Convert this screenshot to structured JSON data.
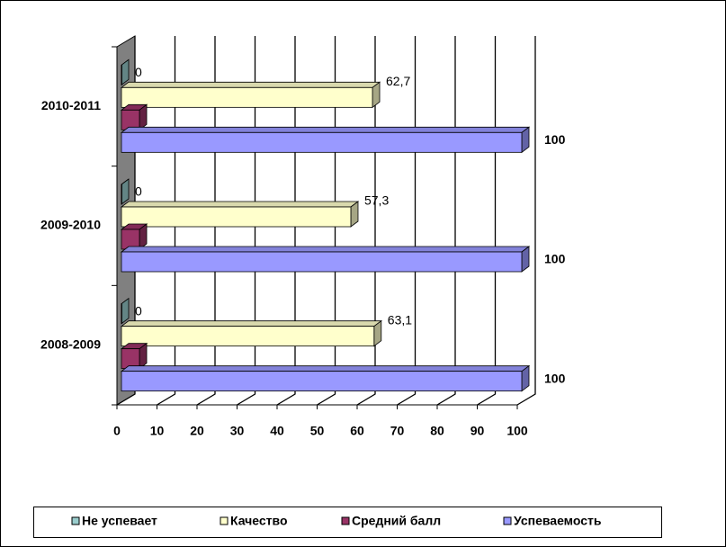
{
  "chart_data": {
    "type": "bar3d_horizontal",
    "categories": [
      "2008-2009",
      "2009-2010",
      "2010-2011"
    ],
    "series": [
      {
        "name": "Не успевает",
        "color": "#99cccc",
        "values": [
          0,
          0,
          0
        ]
      },
      {
        "name": "Качество",
        "color": "#ffffcc",
        "values": [
          63.1,
          57.3,
          62.7
        ],
        "value_labels": [
          "63,1",
          "57,3",
          "62,7"
        ]
      },
      {
        "name": "Средний балл",
        "color": "#993366",
        "values": [
          4.5,
          4.5,
          4.5
        ],
        "data_labels": false
      },
      {
        "name": "Успеваемость",
        "color": "#9999ff",
        "values": [
          100,
          100,
          100
        ]
      }
    ],
    "xlim": [
      0,
      100
    ],
    "xticks": [
      0,
      10,
      20,
      30,
      40,
      50,
      60,
      70,
      80,
      90,
      100
    ],
    "grid": true,
    "legend": "bottom"
  }
}
